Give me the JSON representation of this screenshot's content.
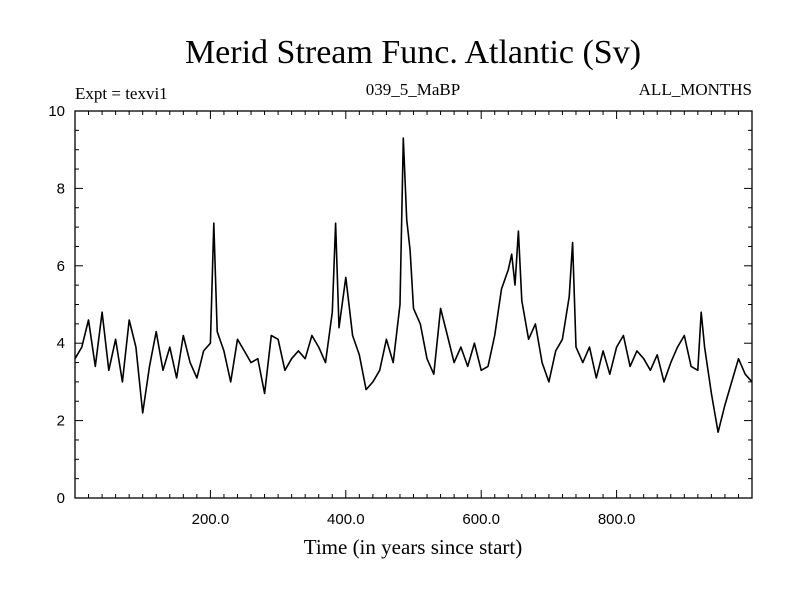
{
  "chart_data": {
    "type": "line",
    "title": "Merid Stream Func. Atlantic (Sv)",
    "annotations": {
      "left": "Expt = texvi1",
      "center": "039_5_MaBP",
      "right": "ALL_MONTHS"
    },
    "xlabel": "Time (in years since start)",
    "ylabel": "",
    "xlim": [
      0,
      1000
    ],
    "ylim": [
      0,
      10
    ],
    "x_ticks": [
      200,
      400,
      600,
      800
    ],
    "x_tick_labels": [
      "200.0",
      "400.0",
      "600.0",
      "800.0"
    ],
    "y_ticks": [
      0,
      2,
      4,
      6,
      8,
      10
    ],
    "y_tick_labels": [
      "0",
      "2",
      "4",
      "6",
      "8",
      "10"
    ],
    "grid": false,
    "line_color": "#000000",
    "series": [
      {
        "x": [
          0,
          10,
          20,
          30,
          40,
          50,
          60,
          70,
          80,
          90,
          100,
          110,
          120,
          130,
          140,
          150,
          160,
          170,
          180,
          190,
          200,
          205,
          210,
          220,
          230,
          240,
          250,
          260,
          270,
          280,
          290,
          300,
          310,
          320,
          330,
          340,
          350,
          360,
          370,
          380,
          385,
          390,
          400,
          410,
          420,
          430,
          440,
          450,
          460,
          470,
          480,
          485,
          490,
          495,
          500,
          510,
          520,
          530,
          540,
          550,
          560,
          570,
          580,
          590,
          600,
          610,
          620,
          630,
          640,
          645,
          650,
          655,
          660,
          670,
          680,
          690,
          700,
          710,
          720,
          730,
          735,
          740,
          750,
          760,
          770,
          780,
          790,
          800,
          810,
          820,
          830,
          840,
          850,
          860,
          870,
          880,
          890,
          900,
          910,
          920,
          925,
          930,
          940,
          950,
          960,
          970,
          980,
          990,
          1000
        ],
        "y": [
          3.6,
          3.9,
          4.6,
          3.4,
          4.8,
          3.3,
          4.1,
          3.0,
          4.6,
          3.9,
          2.2,
          3.4,
          4.3,
          3.3,
          3.9,
          3.1,
          4.2,
          3.5,
          3.1,
          3.8,
          4.0,
          7.1,
          4.3,
          3.8,
          3.0,
          4.1,
          3.8,
          3.5,
          3.6,
          2.7,
          4.2,
          4.1,
          3.3,
          3.6,
          3.8,
          3.6,
          4.2,
          3.9,
          3.5,
          4.8,
          7.1,
          4.4,
          5.7,
          4.2,
          3.7,
          2.8,
          3.0,
          3.3,
          4.1,
          3.5,
          5.0,
          9.3,
          7.2,
          6.4,
          4.9,
          4.5,
          3.6,
          3.2,
          4.9,
          4.2,
          3.5,
          3.9,
          3.4,
          4.0,
          3.3,
          3.4,
          4.2,
          5.4,
          5.9,
          6.3,
          5.5,
          6.9,
          5.1,
          4.1,
          4.5,
          3.5,
          3.0,
          3.8,
          4.1,
          5.2,
          6.6,
          3.9,
          3.5,
          3.9,
          3.1,
          3.8,
          3.2,
          3.9,
          4.2,
          3.4,
          3.8,
          3.6,
          3.3,
          3.7,
          3.0,
          3.5,
          3.9,
          4.2,
          3.4,
          3.3,
          4.8,
          3.9,
          2.7,
          1.7,
          2.4,
          3.0,
          3.6,
          3.2,
          3.0
        ]
      }
    ]
  }
}
